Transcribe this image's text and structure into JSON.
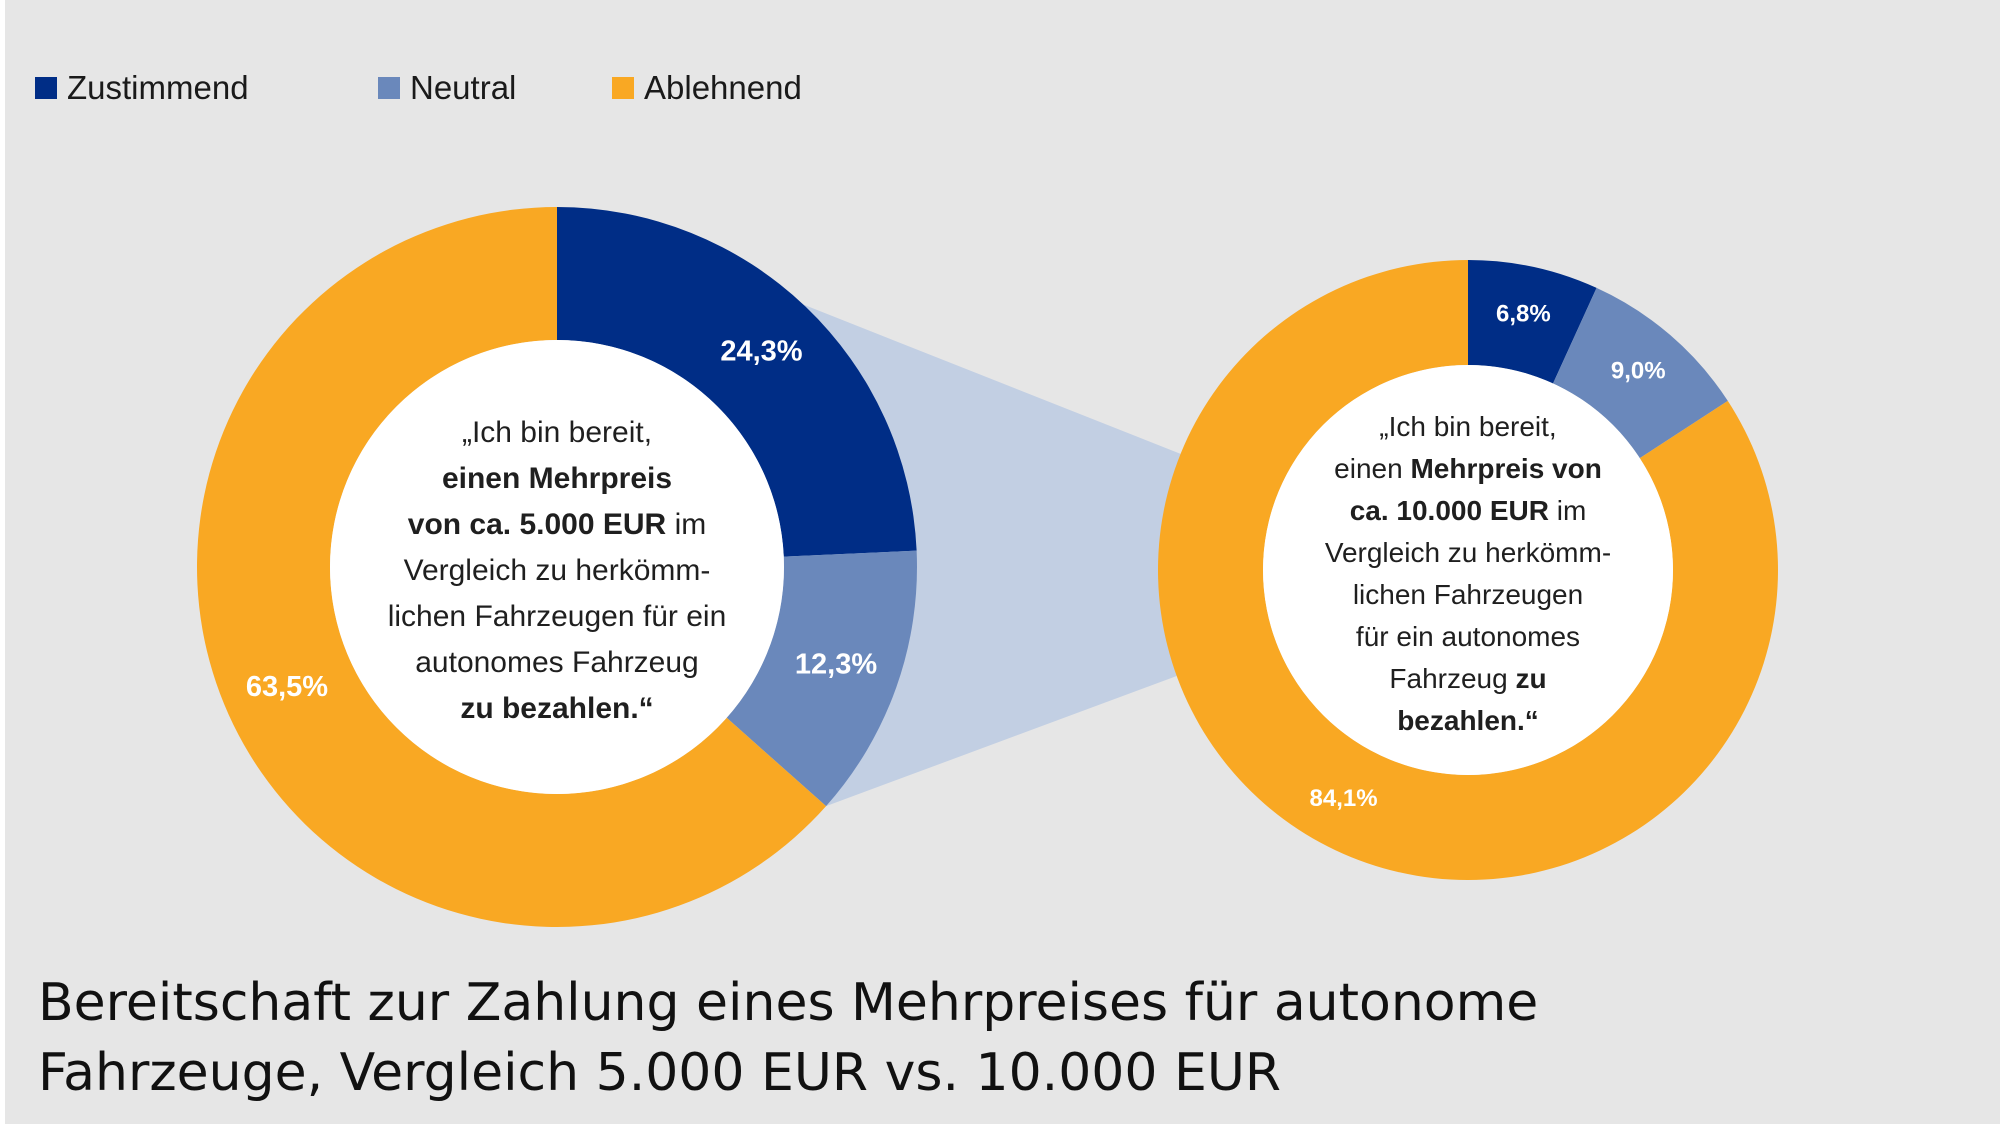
{
  "legend": [
    {
      "label": "Zustimmend",
      "color": "#002d86"
    },
    {
      "label": "Neutral",
      "color": "#6a88bb"
    },
    {
      "label": "Ablehnend",
      "color": "#f9a823"
    }
  ],
  "connector_color": "#c2cfe3",
  "chart_data": [
    {
      "type": "pie",
      "variant": "donut",
      "categories": [
        "Zustimmend",
        "Neutral",
        "Ablehnend"
      ],
      "values": [
        24.3,
        12.3,
        63.5
      ],
      "value_labels": [
        "24,3%",
        "12,3%",
        "63,5%"
      ],
      "center_text": {
        "line1": "„Ich bin bereit,",
        "line2": "einen Mehrpreis",
        "line3_bold": "von ca. 5.000 EUR",
        "line3_rest": " im",
        "line4": "Vergleich zu herkömm-",
        "line5": "lichen Fahrzeugen für ein",
        "line6": "autonomes Fahrzeug",
        "line7": "zu bezahlen.“"
      }
    },
    {
      "type": "pie",
      "variant": "donut",
      "categories": [
        "Zustimmend",
        "Neutral",
        "Ablehnend"
      ],
      "values": [
        6.8,
        9.0,
        84.1
      ],
      "value_labels": [
        "6,8%",
        "9,0%",
        "84,1%"
      ],
      "center_text": {
        "line1": "„Ich bin bereit,",
        "line2_pre": "einen ",
        "line2_bold": "Mehrpreis von",
        "line3_bold": "ca. 10.000 EUR",
        "line3_rest": " im",
        "line4": "Vergleich zu herkömm-",
        "line5": "lichen Fahrzeugen",
        "line6": "für ein autonomes",
        "line7_pre": "Fahrzeug ",
        "line7_bold": "zu",
        "line8": "bezahlen.“"
      }
    }
  ],
  "caption": {
    "line1": "Bereitschaft zur Zahlung eines Mehrpreises für autonome",
    "line2": "Fahrzeuge, Vergleich 5.000 EUR vs. 10.000 EUR"
  }
}
